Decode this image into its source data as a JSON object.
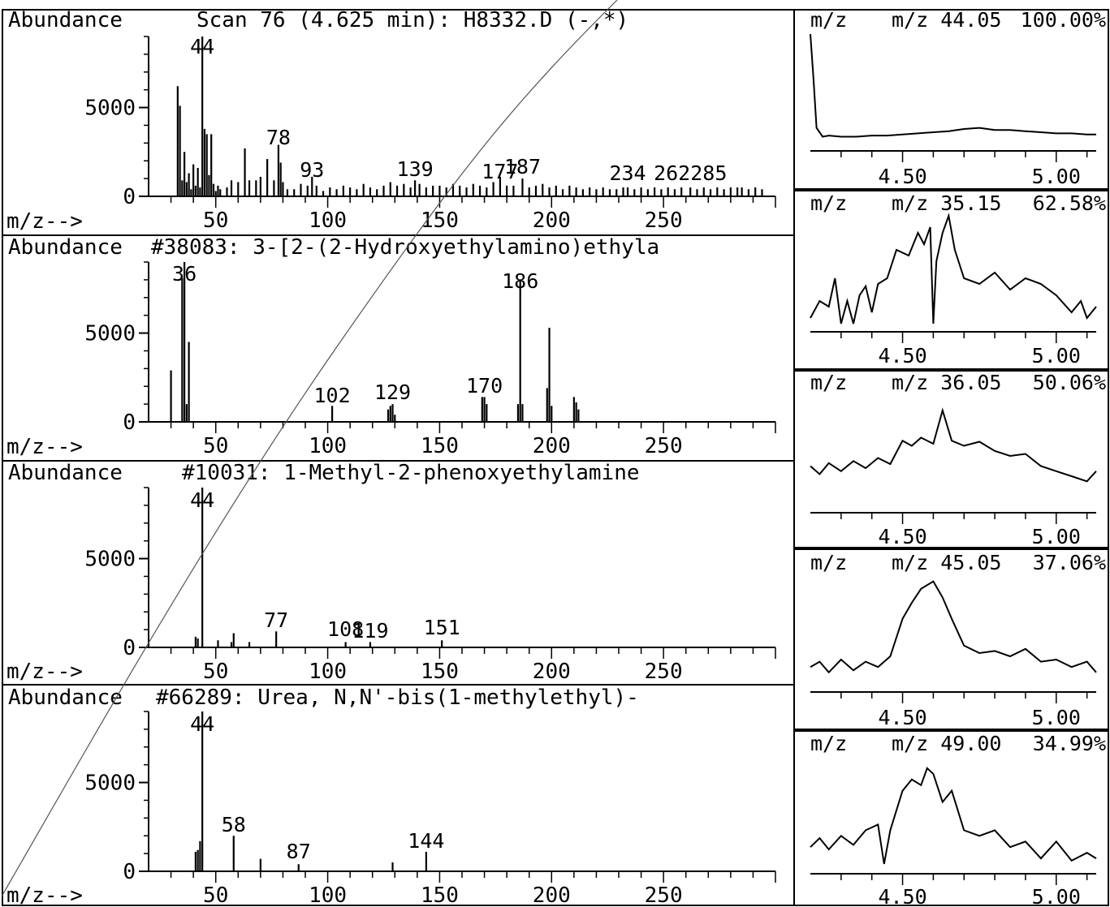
{
  "chart_data": [
    {
      "type": "bar",
      "title": "Scan 76 (4.625 min): H8332.D (-,*)",
      "ylabel": "Abundance",
      "xlabel": "m/z-->",
      "xlim": [
        20,
        300
      ],
      "ylim": [
        0,
        9000
      ],
      "xticks": [
        50,
        100,
        150,
        200,
        250
      ],
      "yticks": [
        0,
        5000
      ],
      "peak_labels": [
        "44",
        "78",
        "93",
        "139",
        "177",
        "187",
        "234",
        "262285"
      ],
      "x": [
        33,
        34,
        35,
        36,
        37,
        38,
        39,
        40,
        41,
        42,
        43,
        44,
        45,
        46,
        47,
        48,
        49,
        50,
        51,
        52,
        55,
        57,
        60,
        63,
        65,
        68,
        70,
        73,
        76,
        78,
        79,
        80,
        82,
        85,
        88,
        91,
        93,
        95,
        98,
        101,
        104,
        107,
        110,
        113,
        116,
        119,
        122,
        125,
        128,
        131,
        134,
        137,
        139,
        141,
        144,
        147,
        150,
        153,
        156,
        159,
        162,
        165,
        168,
        171,
        174,
        177,
        180,
        183,
        187,
        190,
        193,
        196,
        199,
        202,
        205,
        208,
        211,
        214,
        217,
        220,
        223,
        226,
        229,
        232,
        234,
        237,
        240,
        243,
        246,
        249,
        252,
        255,
        258,
        262,
        265,
        268,
        271,
        274,
        277,
        280,
        283,
        285,
        288,
        291,
        294
      ],
      "values": [
        6200,
        5100,
        900,
        2500,
        800,
        1300,
        400,
        1800,
        600,
        1600,
        500,
        9000,
        3800,
        3500,
        1200,
        3500,
        700,
        300,
        600,
        400,
        500,
        900,
        800,
        2700,
        900,
        900,
        1100,
        2100,
        900,
        2900,
        1900,
        800,
        400,
        400,
        700,
        600,
        1100,
        600,
        300,
        500,
        400,
        600,
        500,
        400,
        700,
        500,
        400,
        600,
        800,
        600,
        700,
        500,
        900,
        700,
        500,
        600,
        600,
        500,
        700,
        600,
        500,
        700,
        600,
        500,
        800,
        1100,
        600,
        600,
        1000,
        500,
        600,
        700,
        500,
        600,
        400,
        600,
        500,
        400,
        500,
        400,
        500,
        400,
        400,
        500,
        500,
        400,
        500,
        400,
        500,
        400,
        500,
        400,
        500,
        500,
        400,
        500,
        400,
        500,
        400,
        500,
        500,
        500,
        400,
        500,
        400
      ]
    },
    {
      "type": "bar",
      "title": "#38083: 3-[2-(2-Hydroxyethylamino)ethyla",
      "ylabel": "Abundance",
      "xlabel": "m/z-->",
      "xlim": [
        20,
        300
      ],
      "ylim": [
        0,
        9000
      ],
      "xticks": [
        50,
        100,
        150,
        200,
        250
      ],
      "yticks": [
        0,
        5000
      ],
      "peak_labels": [
        "36",
        "186",
        "102",
        "129",
        "170"
      ],
      "x": [
        30,
        35,
        36,
        37,
        38,
        102,
        127,
        128,
        129,
        130,
        169,
        170,
        171,
        185,
        186,
        187,
        198,
        199,
        200,
        210,
        211,
        212
      ],
      "values": [
        2900,
        8100,
        9000,
        1000,
        4500,
        900,
        700,
        900,
        1000,
        400,
        1400,
        1400,
        1000,
        1000,
        8000,
        1000,
        1900,
        5300,
        900,
        1400,
        1100,
        700
      ]
    },
    {
      "type": "bar",
      "title": "#10031: 1-Methyl-2-phenoxyethylamine",
      "ylabel": "Abundance",
      "xlabel": "m/z-->",
      "xlim": [
        20,
        300
      ],
      "ylim": [
        0,
        9000
      ],
      "xticks": [
        50,
        100,
        150,
        200,
        250
      ],
      "yticks": [
        0,
        5000
      ],
      "peak_labels": [
        "44",
        "77",
        "108",
        "119",
        "151"
      ],
      "x": [
        41,
        42,
        44,
        51,
        57,
        58,
        65,
        77,
        108,
        119,
        151
      ],
      "values": [
        600,
        500,
        9000,
        400,
        300,
        800,
        300,
        900,
        300,
        300,
        400
      ]
    },
    {
      "type": "bar",
      "title": "#66289: Urea, N,N'-bis(1-methylethyl)-",
      "ylabel": "Abundance",
      "xlabel": "m/z-->",
      "xlim": [
        20,
        300
      ],
      "ylim": [
        0,
        9000
      ],
      "xticks": [
        50,
        100,
        150,
        200,
        250
      ],
      "yticks": [
        0,
        5000
      ],
      "peak_labels": [
        "44",
        "58",
        "87",
        "144"
      ],
      "x": [
        41,
        42,
        43,
        44,
        58,
        70,
        87,
        129,
        144
      ],
      "values": [
        1100,
        1200,
        1700,
        9000,
        2000,
        700,
        400,
        500,
        1100
      ]
    },
    {
      "type": "line",
      "title": "m/z 44.05",
      "percent": "100.00%",
      "xlabel": "",
      "xlim": [
        4.2,
        5.13
      ],
      "ylim": [
        0,
        100
      ],
      "xticks": [
        "4.50",
        "5.00"
      ],
      "x": [
        4.2,
        4.21,
        4.22,
        4.24,
        4.26,
        4.3,
        4.35,
        4.4,
        4.45,
        4.5,
        4.55,
        4.6,
        4.65,
        4.7,
        4.75,
        4.8,
        4.85,
        4.9,
        4.95,
        5.0,
        5.05,
        5.1,
        5.13
      ],
      "y": [
        100,
        60,
        15,
        7,
        8,
        7,
        7,
        8,
        8,
        9,
        10,
        11,
        12,
        14,
        15,
        13,
        13,
        12,
        11,
        10,
        10,
        9,
        9
      ]
    },
    {
      "type": "line",
      "title": "m/z 35.15",
      "percent": "62.58%",
      "xlabel": "",
      "xlim": [
        4.2,
        5.13
      ],
      "ylim": [
        0,
        100
      ],
      "xticks": [
        "4.50",
        "5.00"
      ],
      "x": [
        4.2,
        4.23,
        4.26,
        4.28,
        4.3,
        4.32,
        4.34,
        4.36,
        4.38,
        4.4,
        4.42,
        4.45,
        4.48,
        4.52,
        4.55,
        4.57,
        4.59,
        4.6,
        4.61,
        4.63,
        4.65,
        4.67,
        4.7,
        4.75,
        4.8,
        4.85,
        4.9,
        4.95,
        5.0,
        5.05,
        5.08,
        5.1,
        5.13
      ],
      "y": [
        10,
        25,
        20,
        45,
        5,
        25,
        5,
        30,
        38,
        15,
        40,
        45,
        70,
        65,
        85,
        75,
        90,
        5,
        60,
        85,
        100,
        70,
        45,
        40,
        50,
        35,
        45,
        40,
        30,
        15,
        25,
        10,
        20
      ]
    },
    {
      "type": "line",
      "title": "m/z 36.05",
      "percent": "50.06%",
      "xlabel": "",
      "xlim": [
        4.2,
        5.13
      ],
      "ylim": [
        0,
        100
      ],
      "xticks": [
        "4.50",
        "5.00"
      ],
      "x": [
        4.2,
        4.23,
        4.26,
        4.3,
        4.34,
        4.38,
        4.42,
        4.46,
        4.5,
        4.53,
        4.56,
        4.6,
        4.63,
        4.66,
        4.7,
        4.75,
        4.8,
        4.85,
        4.9,
        4.95,
        5.0,
        5.05,
        5.1,
        5.13
      ],
      "y": [
        30,
        22,
        33,
        25,
        35,
        28,
        38,
        32,
        55,
        50,
        58,
        52,
        85,
        55,
        50,
        54,
        45,
        40,
        42,
        30,
        25,
        20,
        15,
        25
      ]
    },
    {
      "type": "line",
      "title": "m/z 45.05",
      "percent": "37.06%",
      "xlabel": "",
      "xlim": [
        4.2,
        5.13
      ],
      "ylim": [
        0,
        100
      ],
      "xticks": [
        "4.50",
        "5.00"
      ],
      "x": [
        4.2,
        4.23,
        4.26,
        4.3,
        4.34,
        4.38,
        4.42,
        4.46,
        4.5,
        4.53,
        4.56,
        4.6,
        4.63,
        4.66,
        4.7,
        4.75,
        4.8,
        4.85,
        4.9,
        4.95,
        5.0,
        5.05,
        5.1,
        5.13
      ],
      "y": [
        15,
        20,
        10,
        22,
        12,
        20,
        15,
        25,
        60,
        75,
        88,
        95,
        80,
        60,
        35,
        28,
        30,
        25,
        32,
        20,
        22,
        15,
        20,
        10
      ]
    },
    {
      "type": "line",
      "title": "m/z 49.00",
      "percent": "34.99%",
      "xlabel": "",
      "xlim": [
        4.2,
        5.13
      ],
      "ylim": [
        0,
        100
      ],
      "xticks": [
        "4.50",
        "5.00"
      ],
      "x": [
        4.2,
        4.23,
        4.26,
        4.3,
        4.34,
        4.38,
        4.42,
        4.44,
        4.46,
        4.5,
        4.53,
        4.56,
        4.58,
        4.6,
        4.63,
        4.66,
        4.7,
        4.75,
        4.8,
        4.85,
        4.9,
        4.95,
        5.0,
        5.05,
        5.1,
        5.13
      ],
      "y": [
        20,
        28,
        18,
        30,
        22,
        35,
        40,
        5,
        35,
        70,
        80,
        75,
        90,
        85,
        60,
        70,
        35,
        30,
        35,
        20,
        25,
        10,
        25,
        8,
        15,
        10
      ]
    }
  ],
  "labels": {
    "abundance": "Abundance",
    "mz_arrow": "m/z-->",
    "mz": "m/z",
    "spec1_title": "Scan 76 (4.625 min): H8332.D (-,*)",
    "spec2_title": "#38083: 3-[2-(2-Hydroxyethylamino)ethyla",
    "spec3_title": "#10031: 1-Methyl-2-phenoxyethylamine",
    "spec4_title": "#66289: Urea, N,N'-bis(1-methylethyl)-"
  }
}
